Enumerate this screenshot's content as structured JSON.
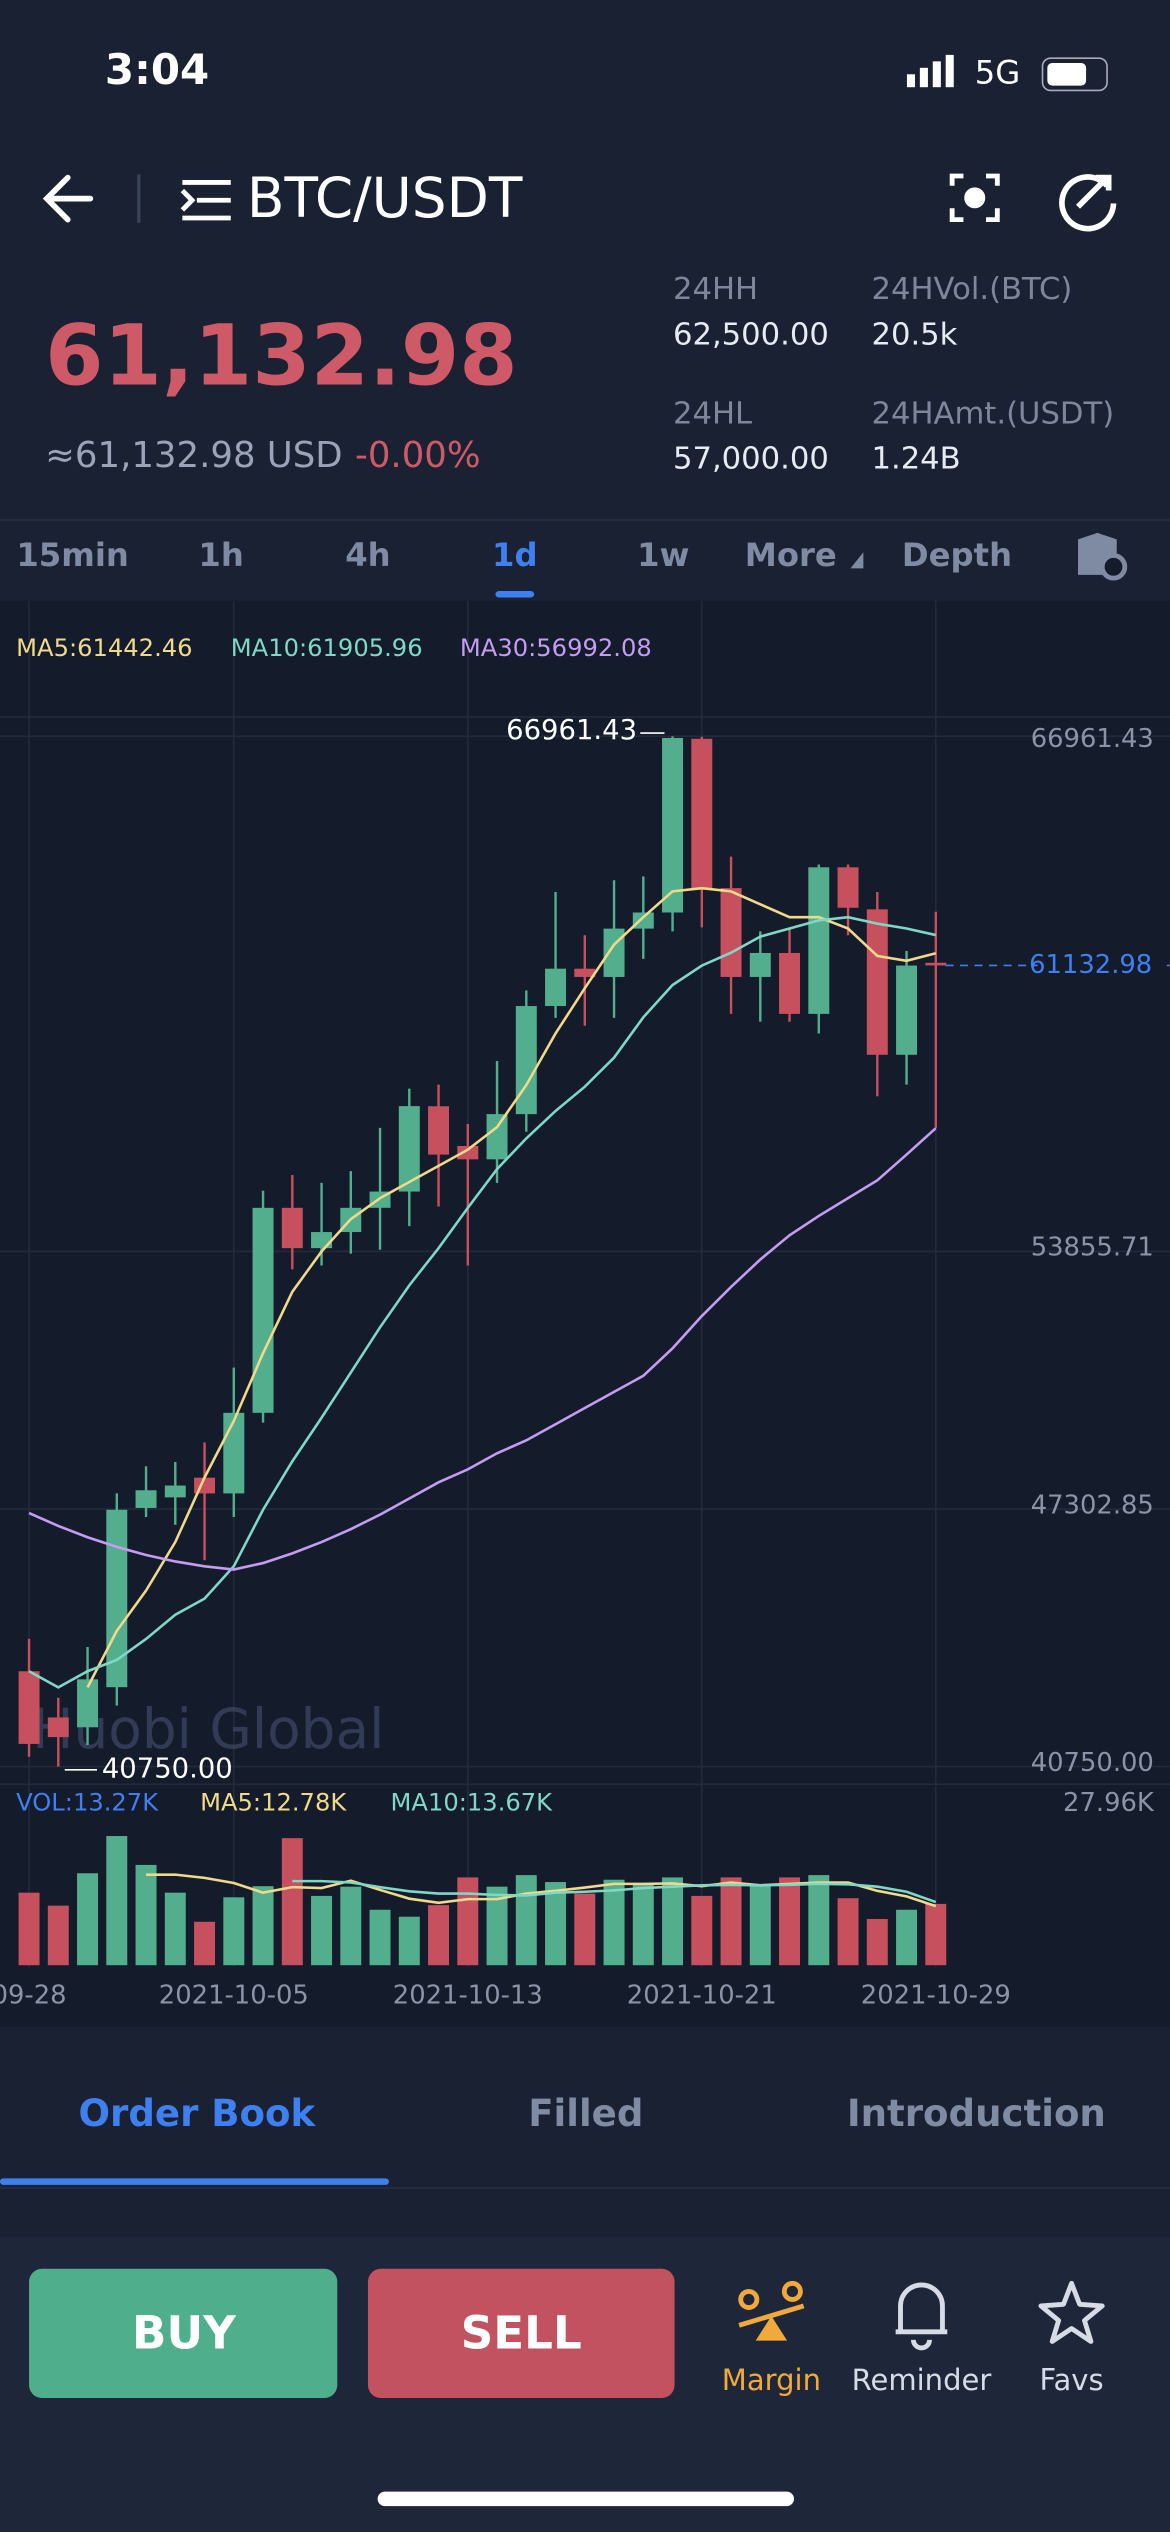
{
  "status": {
    "time": "3:04",
    "network": "5G"
  },
  "header": {
    "pair": "BTC/USDT"
  },
  "ticker": {
    "price": "61,132.98",
    "usd": "≈61,132.98 USD",
    "change": "-0.00%",
    "stats": [
      {
        "label": "24HH",
        "value": "62,500.00"
      },
      {
        "label": "24HVol.(BTC)",
        "value": "20.5k"
      },
      {
        "label": "24HL",
        "value": "57,000.00"
      },
      {
        "label": "24HAmt.(USDT)",
        "value": "1.24B"
      }
    ]
  },
  "intervals": {
    "items": [
      "15min",
      "1h",
      "4h",
      "1d",
      "1w",
      "More",
      "Depth"
    ],
    "active": 3
  },
  "chart": {
    "type": "candlestick",
    "up_color": "#52ae8d",
    "down_color": "#c7505e",
    "grid": true,
    "categories": [
      "09-28",
      null,
      null,
      null,
      null,
      null,
      null,
      "2021-10-05",
      null,
      null,
      null,
      null,
      null,
      null,
      null,
      "2021-10-13",
      null,
      null,
      null,
      null,
      null,
      null,
      null,
      "2021-10-21",
      null,
      null,
      null,
      null,
      null,
      null,
      null,
      "2021-10-29"
    ],
    "open": [
      43175,
      42000,
      41750,
      42770,
      47330,
      47600,
      48100,
      47700,
      49750,
      54966,
      53940,
      54350,
      54966,
      55380,
      57550,
      56540,
      56200,
      57350,
      60100,
      61050,
      60840,
      62070,
      62480,
      66900,
      63100,
      60840,
      61450,
      59900,
      63630,
      62560,
      58860,
      61200
    ],
    "high": [
      44000,
      42500,
      43792,
      47700,
      48390,
      48500,
      49000,
      50900,
      55400,
      55800,
      55600,
      55900,
      57000,
      58000,
      58100,
      57100,
      58700,
      60500,
      63000,
      61900,
      63300,
      63400,
      66961.43,
      66950,
      63900,
      62000,
      62100,
      63700,
      63700,
      63000,
      61500,
      62500
    ],
    "low": [
      41000,
      40750,
      41300,
      42300,
      47100,
      46900,
      46000,
      47100,
      49500,
      53400,
      53500,
      53800,
      53900,
      54500,
      55000,
      53500,
      55600,
      56900,
      59800,
      59600,
      59800,
      61300,
      62000,
      62100,
      59900,
      59700,
      59700,
      59400,
      61900,
      57800,
      58100,
      57000
    ],
    "close": [
      41327,
      41500,
      42970,
      47284,
      47780,
      47900,
      47700,
      49750,
      54966,
      53940,
      54350,
      54966,
      55380,
      57554,
      56320,
      56200,
      57350,
      60100,
      61050,
      60840,
      62070,
      62480,
      66920,
      63100,
      60840,
      61450,
      59900,
      63630,
      62600,
      58860,
      61130,
      61132.98
    ],
    "ma_lines": [
      {
        "label": "MA5:61442.46",
        "color": "#f0d98a",
        "values": [
          null,
          null,
          42765,
          44203,
          45230,
          46462,
          48105,
          49543,
          51268,
          52829,
          53856,
          54678,
          55212,
          55623,
          56034,
          56445,
          57020,
          58088,
          59402,
          60553,
          61662,
          62360,
          63017,
          63099,
          63017,
          62689,
          62360,
          62360,
          62072,
          61374,
          61251,
          61442.46
        ]
      },
      {
        "label": "MA10:61905.96",
        "color": "#7fd8c5",
        "values": [
          43176,
          42765,
          43176,
          43463,
          43997,
          44613,
          45024,
          45846,
          47284,
          48516,
          49625,
          50775,
          51926,
          52994,
          53939,
          54966,
          55952,
          56732,
          57430,
          58047,
          58786,
          59813,
          60635,
          61128,
          61456,
          61867,
          62072,
          62278,
          62360,
          62196,
          62072,
          61905.96
        ]
      },
      {
        "label": "MA30:56992.08",
        "color": "#c49cf2",
        "values": [
          47201,
          46873,
          46585,
          46339,
          46133,
          45969,
          45846,
          45764,
          45928,
          46175,
          46462,
          46791,
          47160,
          47571,
          47982,
          48311,
          48721,
          49050,
          49461,
          49872,
          50283,
          50693,
          51392,
          52213,
          52953,
          53651,
          54267,
          54760,
          55212,
          55664,
          56321,
          56992.08
        ]
      }
    ],
    "ylim": [
      40750,
      66961.43
    ],
    "yticks": [
      66961.43,
      53855.71,
      47302.85,
      {
        "value": 40750,
        "label": "40750.00"
      }
    ],
    "annotations": {
      "high": "66961.43",
      "low": "40750.00",
      "last": "61132.98"
    },
    "watermark": "Huobi Global"
  },
  "volume": {
    "label": "VOL:13.27K",
    "values": [
      15.7,
      12.9,
      19.9,
      27.96,
      21.7,
      15.7,
      9.4,
      14.7,
      17.1,
      27.5,
      15.0,
      17.0,
      12.0,
      10.5,
      13.0,
      19.0,
      17.0,
      19.5,
      18.0,
      15.5,
      18.5,
      17.5,
      19.0,
      15.0,
      19.0,
      17.5,
      19.0,
      19.5,
      14.5,
      10.0,
      12.0,
      13.27
    ],
    "ma_lines": [
      {
        "label": "MA5:12.78K",
        "color": "#f0d98a",
        "values": [
          null,
          null,
          null,
          null,
          19.6,
          19.6,
          18.9,
          17.8,
          15.7,
          16.9,
          16.7,
          18.3,
          16.3,
          14.4,
          13.5,
          14.3,
          14.3,
          15.5,
          16.1,
          16.8,
          17.6,
          17.6,
          17.7,
          17.1,
          17.9,
          17.3,
          17.6,
          17.9,
          17.9,
          16.1,
          14.9,
          12.78
        ]
      },
      {
        "label": "MA10:13.67K",
        "color": "#7fd8c5",
        "values": [
          null,
          null,
          null,
          null,
          null,
          null,
          null,
          null,
          null,
          18.2,
          18.2,
          17.9,
          16.9,
          16.0,
          15.5,
          15.5,
          15.2,
          15.1,
          15.7,
          15.9,
          16.2,
          16.7,
          17.0,
          17.3,
          17.4,
          17.3,
          17.4,
          17.6,
          17.5,
          17.0,
          15.9,
          13.67
        ]
      }
    ],
    "ylim": [
      0,
      27.96
    ],
    "yticks": [
      {
        "value": 27.96,
        "label": "27.96K"
      }
    ]
  },
  "tabs": {
    "items": [
      "Order Book",
      "Filled",
      "Introduction"
    ],
    "active": 0
  },
  "actions": {
    "buy": "BUY",
    "sell": "SELL",
    "nav": [
      "Margin",
      "Reminder",
      "Favs"
    ]
  }
}
